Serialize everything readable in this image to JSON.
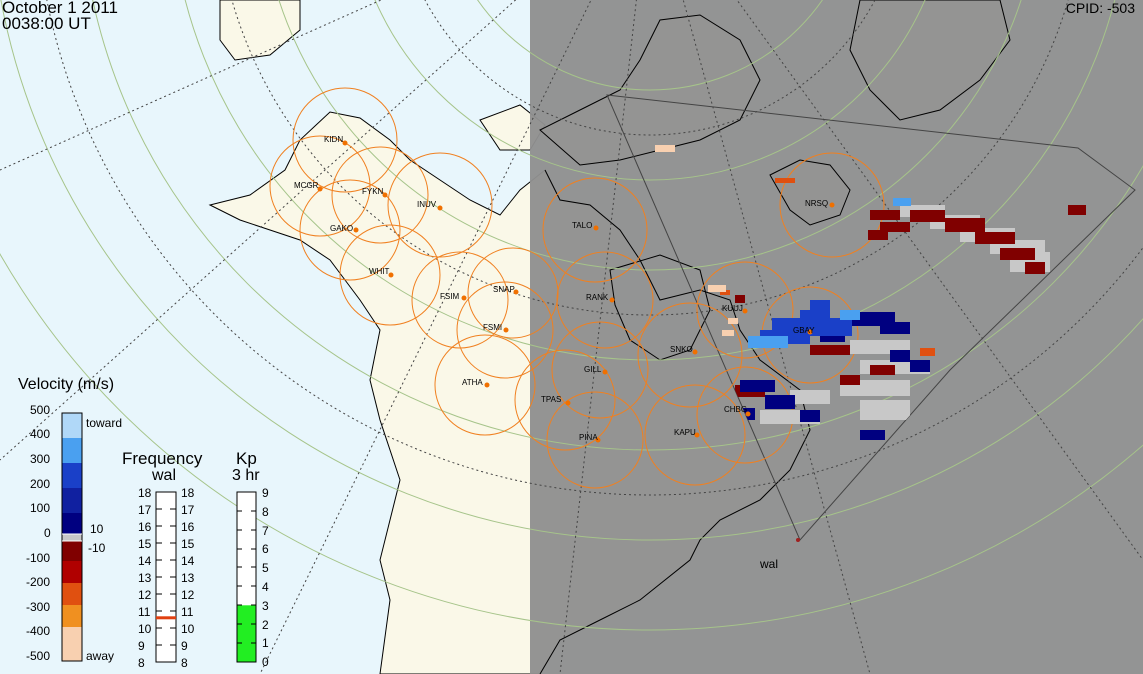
{
  "header": {
    "date": "October 1 2011",
    "time": "0038:00 UT",
    "cpid": "CPID:  -503"
  },
  "colors": {
    "ocean": "#e8f6fc",
    "land": "#faf8e8",
    "night": "#909090",
    "fov_ring": "#f08020",
    "station_dot": "#f07000",
    "lat_circle": "#a6c48a",
    "kp_fill": "#22ee22",
    "freq_marker": "#e04010"
  },
  "stations": [
    {
      "code": "KIDN"
    },
    {
      "code": "MCGR"
    },
    {
      "code": "FYKN"
    },
    {
      "code": "INUV"
    },
    {
      "code": "GAKO"
    },
    {
      "code": "WHIT"
    },
    {
      "code": "FSIM"
    },
    {
      "code": "SNAP"
    },
    {
      "code": "FSMI"
    },
    {
      "code": "ATHA"
    },
    {
      "code": "TALO"
    },
    {
      "code": "RANK"
    },
    {
      "code": "GILL"
    },
    {
      "code": "TPAS"
    },
    {
      "code": "PINA"
    },
    {
      "code": "SNKO"
    },
    {
      "code": "KAPU"
    },
    {
      "code": "CHBG"
    },
    {
      "code": "KUUJ"
    },
    {
      "code": "GBAY"
    },
    {
      "code": "NRSQ"
    }
  ],
  "radar": {
    "name": "wal"
  },
  "velocity_scale": {
    "title": "Velocity (m/s)",
    "ticks": [
      "500",
      "400",
      "300",
      "200",
      "100",
      "0",
      "-100",
      "-200",
      "-300",
      "-400",
      "-500"
    ],
    "toward_label": "toward",
    "away_label": "away",
    "ground_scatter_upper": "10",
    "ground_scatter_lower": "-10"
  },
  "frequency_scale": {
    "title": "Frequency",
    "subtitle": "wal",
    "ticks": [
      "18",
      "17",
      "16",
      "15",
      "14",
      "13",
      "12",
      "11",
      "10",
      "9",
      "8"
    ],
    "current_mhz": 10.6
  },
  "kp_scale": {
    "title": "Kp",
    "subtitle": "3 hr",
    "ticks": [
      "9",
      "8",
      "7",
      "6",
      "5",
      "4",
      "3",
      "2",
      "1",
      "0"
    ],
    "current": 3
  }
}
